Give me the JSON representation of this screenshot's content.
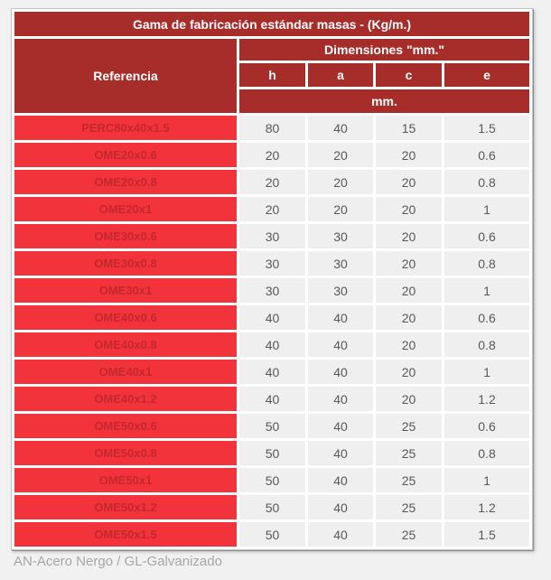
{
  "page": {
    "footer_note": "AN-Acero Nergo / GL-Galvanizado"
  },
  "colors": {
    "dark_red": "#a72d2b",
    "bright_red": "#f2333c",
    "ref_text": "#c5272e",
    "cell_bg": "#efefef",
    "cell_text": "#57585a",
    "header_text": "#ffffff",
    "footer_text": "#a6a6a6",
    "page_bg": "#f1f1f2"
  },
  "table": {
    "title": "Gama de fabricación estándar masas - (Kg/m.)",
    "reference_header": "Referencia",
    "dimensions_header": "Dimensiones \"mm.\"",
    "dim_columns": [
      "h",
      "a",
      "c",
      "e"
    ],
    "unit_row": "mm.",
    "rows": [
      [
        "PERC80x40x1.5",
        "80",
        "40",
        "15",
        "1.5"
      ],
      [
        "OME20x0.6",
        "20",
        "20",
        "20",
        "0.6"
      ],
      [
        "OME20x0.8",
        "20",
        "20",
        "20",
        "0.8"
      ],
      [
        "OME20x1",
        "20",
        "20",
        "20",
        "1"
      ],
      [
        "OME30x0.6",
        "30",
        "30",
        "20",
        "0.6"
      ],
      [
        "OME30x0.8",
        "30",
        "30",
        "20",
        "0.8"
      ],
      [
        "OME30x1",
        "30",
        "30",
        "20",
        "1"
      ],
      [
        "OME40x0.6",
        "40",
        "40",
        "20",
        "0.6"
      ],
      [
        "OME40x0.8",
        "40",
        "40",
        "20",
        "0.8"
      ],
      [
        "OME40x1",
        "40",
        "40",
        "20",
        "1"
      ],
      [
        "OME40x1.2",
        "40",
        "40",
        "20",
        "1.2"
      ],
      [
        "OME50x0.6",
        "50",
        "40",
        "25",
        "0.6"
      ],
      [
        "OME50x0.8",
        "50",
        "40",
        "25",
        "0.8"
      ],
      [
        "OME50x1",
        "50",
        "40",
        "25",
        "1"
      ],
      [
        "OME50x1.2",
        "50",
        "40",
        "25",
        "1.2"
      ],
      [
        "OME50x1.5",
        "50",
        "40",
        "25",
        "1.5"
      ]
    ]
  },
  "chart_data": {
    "type": "table",
    "title": "Gama de fabricación estándar masas - (Kg/m.)",
    "columns": [
      "Referencia",
      "h",
      "a",
      "c",
      "e"
    ],
    "units": "mm.",
    "rows": [
      [
        "PERC80x40x1.5",
        80,
        40,
        15,
        1.5
      ],
      [
        "OME20x0.6",
        20,
        20,
        20,
        0.6
      ],
      [
        "OME20x0.8",
        20,
        20,
        20,
        0.8
      ],
      [
        "OME20x1",
        20,
        20,
        20,
        1
      ],
      [
        "OME30x0.6",
        30,
        30,
        20,
        0.6
      ],
      [
        "OME30x0.8",
        30,
        30,
        20,
        0.8
      ],
      [
        "OME30x1",
        30,
        30,
        20,
        1
      ],
      [
        "OME40x0.6",
        40,
        40,
        20,
        0.6
      ],
      [
        "OME40x0.8",
        40,
        40,
        20,
        0.8
      ],
      [
        "OME40x1",
        40,
        40,
        20,
        1
      ],
      [
        "OME40x1.2",
        40,
        40,
        20,
        1.2
      ],
      [
        "OME50x0.6",
        50,
        40,
        25,
        0.6
      ],
      [
        "OME50x0.8",
        50,
        40,
        25,
        0.8
      ],
      [
        "OME50x1",
        50,
        40,
        25,
        1
      ],
      [
        "OME50x1.2",
        50,
        40,
        25,
        1.2
      ],
      [
        "OME50x1.5",
        50,
        40,
        25,
        1.5
      ]
    ],
    "footnote": "AN-Acero Nergo / GL-Galvanizado"
  }
}
